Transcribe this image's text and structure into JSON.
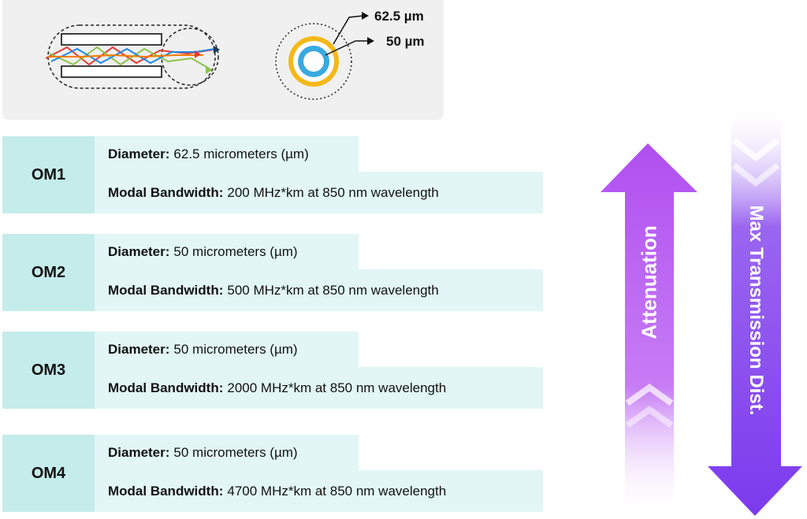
{
  "diagram": {
    "outer_diameter_label": "62.5 µm",
    "inner_diameter_label": "50 µm"
  },
  "fibers": [
    {
      "name": "OM1",
      "diameter_key": "Diameter:",
      "diameter_value": "62.5 micrometers (µm)",
      "bandwidth_key": "Modal Bandwidth:",
      "bandwidth_value": "200 MHz*km at 850 nm wavelength"
    },
    {
      "name": "OM2",
      "diameter_key": "Diameter:",
      "diameter_value": "50 micrometers (µm)",
      "bandwidth_key": "Modal Bandwidth:",
      "bandwidth_value": "500 MHz*km at 850 nm wavelength"
    },
    {
      "name": "OM3",
      "diameter_key": "Diameter:",
      "diameter_value": "50 micrometers (µm)",
      "bandwidth_key": "Modal Bandwidth:",
      "bandwidth_value": "2000 MHz*km at 850 nm wavelength"
    },
    {
      "name": "OM4",
      "diameter_key": "Diameter:",
      "diameter_value": "50 micrometers (µm)",
      "bandwidth_key": "Modal Bandwidth:",
      "bandwidth_value": "4700 MHz*km at 850 nm wavelength"
    }
  ],
  "arrows": {
    "attenuation_label": "Attenuation",
    "distance_label": "Max Transmission Dist."
  },
  "colors": {
    "label_bg": "#c4eceb",
    "spec_bg": "#e2f6f6",
    "arrow_up": "#b04ff0",
    "arrow_down": "#7c3aed",
    "ring_outer": "#f5b819",
    "ring_inner": "#3aa9e0"
  }
}
